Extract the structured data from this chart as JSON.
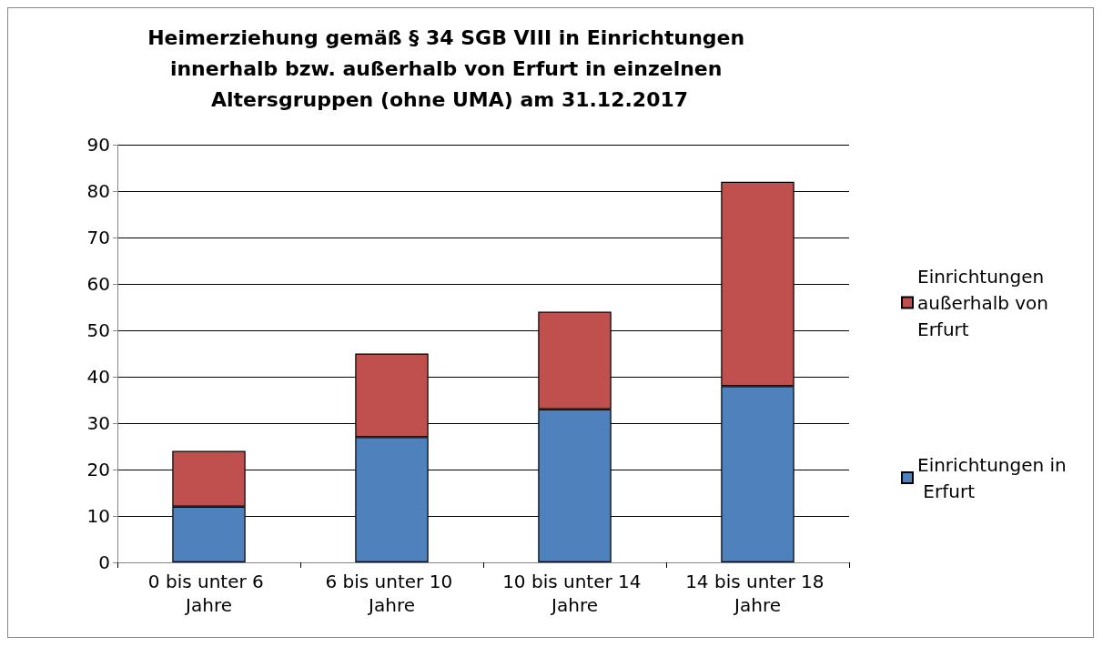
{
  "chart_data": {
    "type": "bar",
    "title": "Heimerziehung gemäß § 34 SGB VIII in Einrichtungen innerhalb bzw. außerhalb von Erfurt in einzelnen Altersgruppen (ohne UMA) am 31.12.2017",
    "categories": [
      "0 bis unter 6 Jahre",
      "6 bis unter 10 Jahre",
      "10 bis unter 14 Jahre",
      "14 bis unter 18 Jahre"
    ],
    "stacked": true,
    "series": [
      {
        "name": "Einrichtungen in Erfurt",
        "color": "#4f81bd",
        "values": [
          12,
          27,
          33,
          38
        ]
      },
      {
        "name": "Einrichtungen außerhalb von Erfurt",
        "color": "#c0504d",
        "values": [
          12,
          18,
          21,
          44
        ]
      }
    ],
    "ylim": [
      0,
      90
    ],
    "yticks": [
      0,
      10,
      20,
      30,
      40,
      50,
      60,
      70,
      80,
      90
    ],
    "grid": "y",
    "legend": "right"
  }
}
